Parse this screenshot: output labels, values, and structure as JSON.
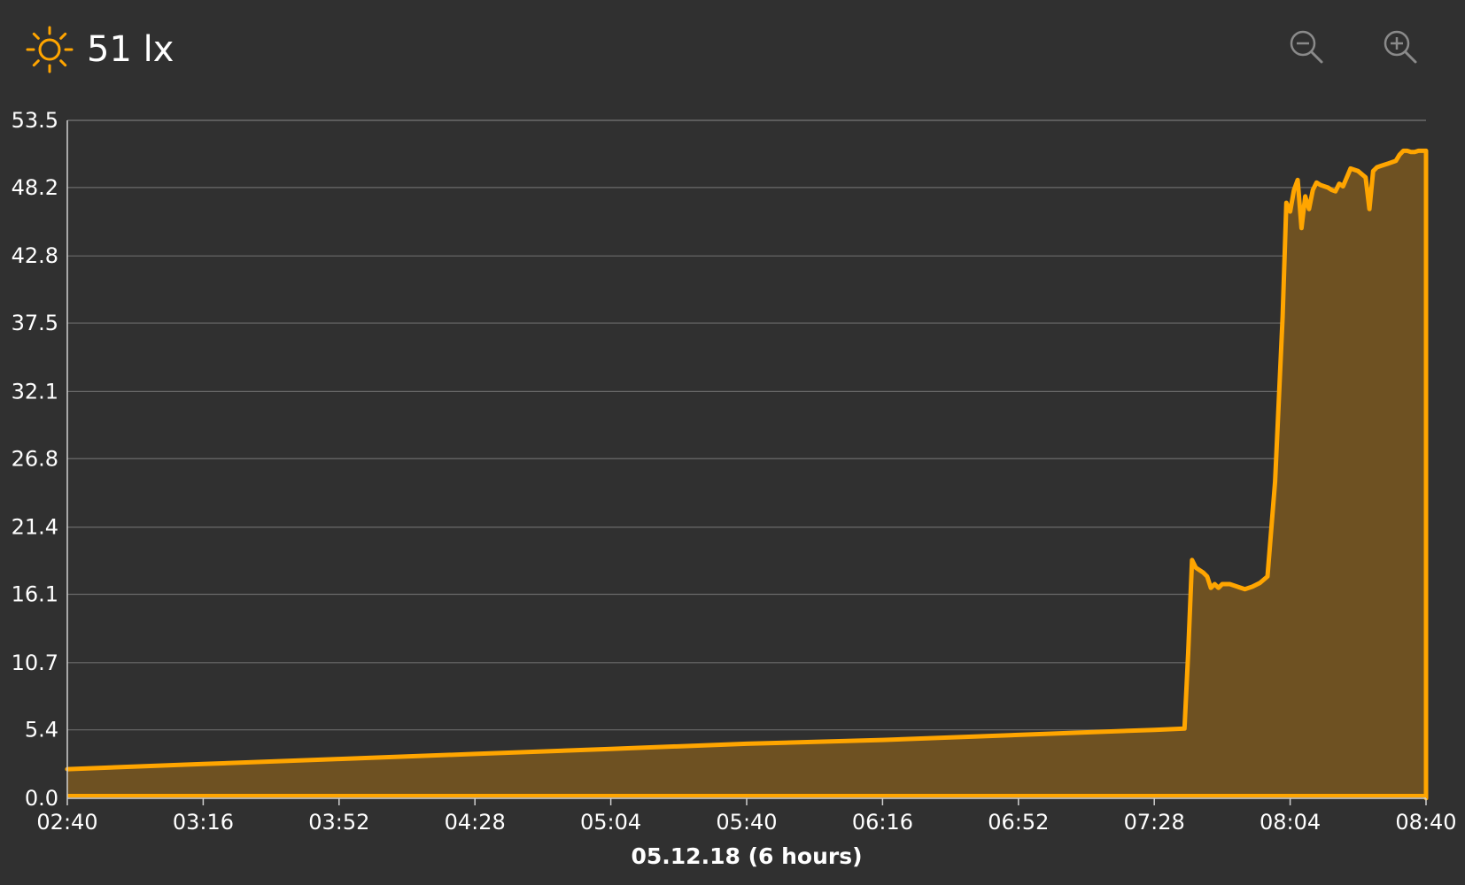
{
  "header": {
    "icon": "sun-icon",
    "value_text": "51 lx",
    "zoom_out_icon": "zoom-out-icon",
    "zoom_in_icon": "zoom-in-icon"
  },
  "colors": {
    "background": "#303030",
    "line": "#FFA500",
    "area_fill": "#6E5122",
    "grid": "#6a6a6a",
    "text": "#ffffff"
  },
  "chart_data": {
    "type": "area",
    "xlabel": "05.12.18 (6 hours)",
    "ylabel": "",
    "ylim": [
      0,
      53.5
    ],
    "xlim_minutes": [
      160,
      520
    ],
    "y_ticks": [
      "0.0",
      "5.4",
      "10.7",
      "16.1",
      "21.4",
      "26.8",
      "32.1",
      "37.5",
      "42.8",
      "48.2",
      "53.5"
    ],
    "x_ticks": [
      "02:40",
      "03:16",
      "03:52",
      "04:28",
      "05:04",
      "05:40",
      "06:16",
      "06:52",
      "07:28",
      "08:04",
      "08:40"
    ],
    "grid": true,
    "series": [
      {
        "x": [
          "02:40",
          "03:16",
          "03:52",
          "04:28",
          "05:04",
          "05:40",
          "06:16",
          "06:52",
          "07:28",
          "07:36",
          "07:37",
          "07:38",
          "07:39",
          "07:41",
          "07:42",
          "07:43",
          "07:44",
          "07:45",
          "07:46",
          "07:48",
          "07:50",
          "07:52",
          "07:54",
          "07:56",
          "07:58",
          "08:00",
          "08:02",
          "08:03",
          "08:04",
          "08:05",
          "08:06",
          "08:07",
          "08:08",
          "08:09",
          "08:10",
          "08:11",
          "08:12",
          "08:13",
          "08:14",
          "08:15",
          "08:16",
          "08:17",
          "08:18",
          "08:20",
          "08:22",
          "08:24",
          "08:25",
          "08:26",
          "08:27",
          "08:28",
          "08:30",
          "08:32",
          "08:33",
          "08:34",
          "08:35",
          "08:36",
          "08:37",
          "08:38",
          "08:39",
          "08:40",
          "08:40"
        ],
        "values": [
          2.3,
          2.7,
          3.1,
          3.5,
          3.9,
          4.3,
          4.6,
          5.0,
          5.4,
          5.5,
          11.5,
          18.8,
          18.2,
          17.8,
          17.5,
          16.6,
          16.9,
          16.6,
          16.9,
          16.9,
          16.7,
          16.5,
          16.7,
          17.0,
          17.5,
          25.0,
          38.0,
          47.0,
          46.3,
          48.0,
          48.8,
          45.0,
          47.5,
          46.5,
          48.0,
          48.6,
          48.4,
          48.3,
          48.2,
          48.0,
          47.9,
          48.5,
          48.3,
          49.7,
          49.5,
          49.0,
          46.5,
          49.5,
          49.8,
          49.9,
          50.1,
          50.3,
          50.8,
          51.1,
          51.1,
          51.0,
          51.0,
          51.1,
          51.1,
          51.1,
          0
        ]
      }
    ]
  }
}
